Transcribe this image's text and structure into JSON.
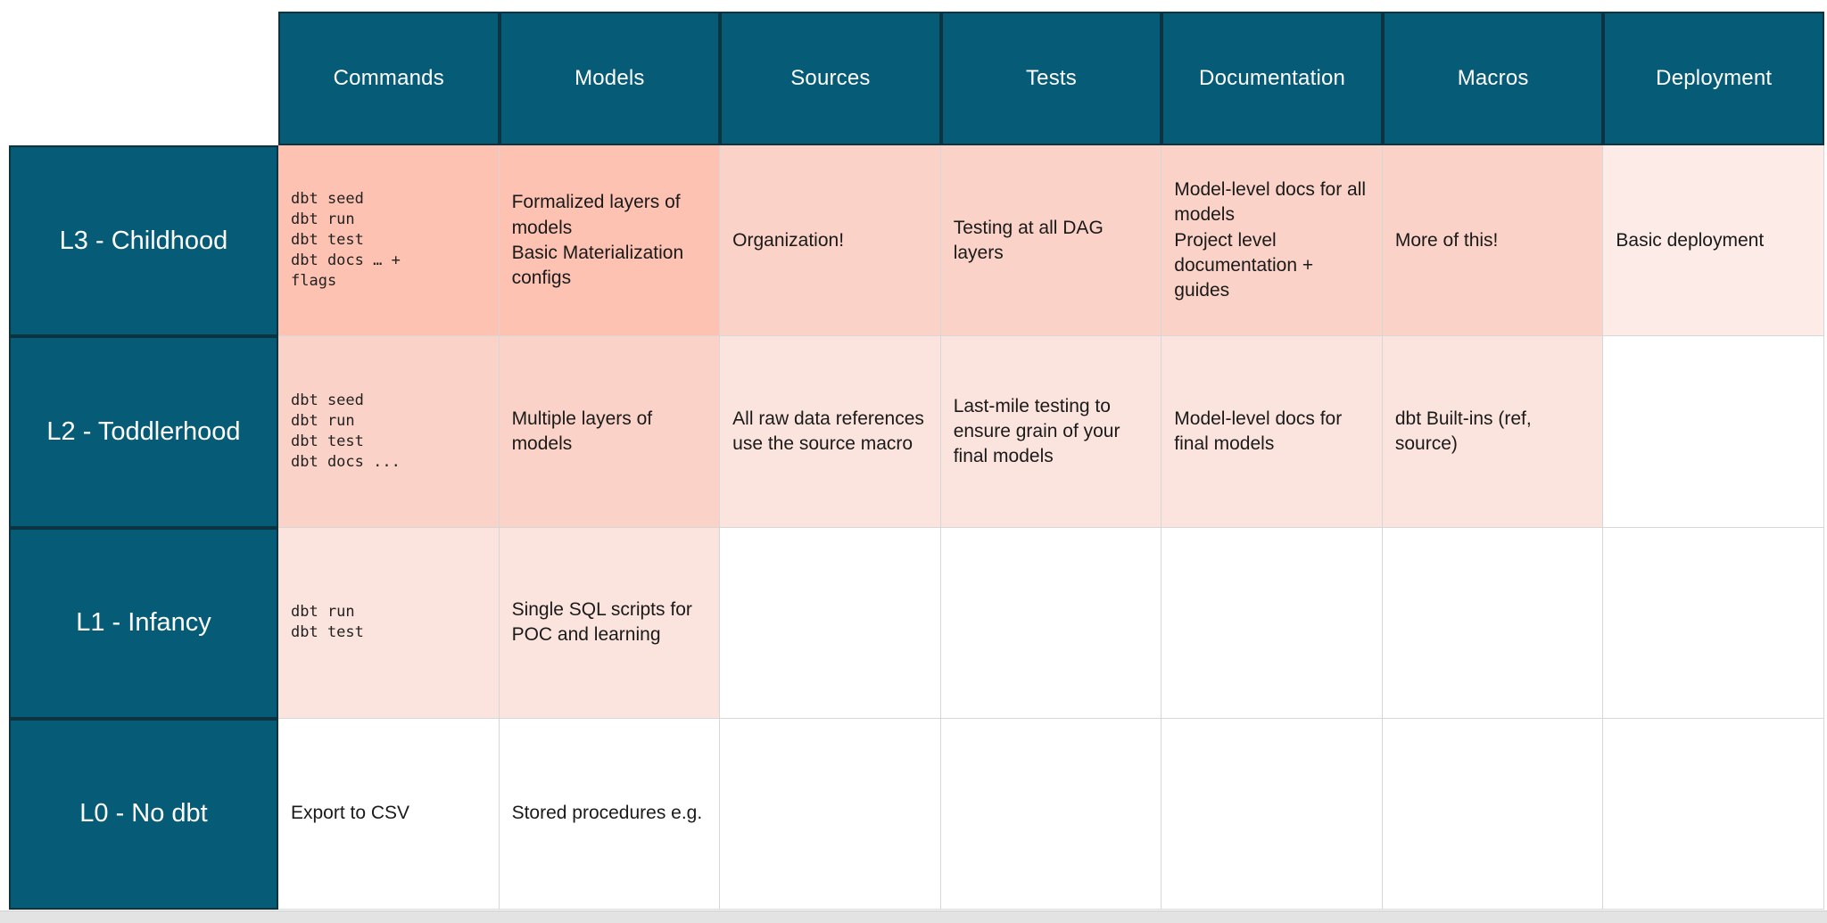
{
  "colors": {
    "teal": "#065B77",
    "teal_border": "#0D3341",
    "grid_line": "#D7D7D7",
    "text_dark": "#1A1A1A",
    "shade_strong": "#FDC2B2",
    "shade_medium": "#FBD2C7",
    "shade_light": "#FCE4DE",
    "shade_faint": "#FCEBE7",
    "shade_white": "#FFFFFF",
    "bottom_bar": "#E3E3E3"
  },
  "table": {
    "columns": [
      "Commands",
      "Models",
      "Sources",
      "Tests",
      "Documentation",
      "Macros",
      "Deployment"
    ],
    "rows": [
      {
        "label": "L3 - Childhood",
        "cells": [
          {
            "text": "dbt seed\ndbt run\ndbt test\ndbt docs … +\nflags",
            "code": true,
            "shade": "strong"
          },
          {
            "text": "Formalized layers of models\nBasic Materialization configs",
            "code": false,
            "shade": "strong"
          },
          {
            "text": "Organization!",
            "code": false,
            "shade": "medium"
          },
          {
            "text": "Testing at all DAG layers",
            "code": false,
            "shade": "medium"
          },
          {
            "text": "Model-level docs for all models\nProject level documentation + guides",
            "code": false,
            "shade": "medium"
          },
          {
            "text": "More of this!",
            "code": false,
            "shade": "medium"
          },
          {
            "text": "Basic deployment",
            "code": false,
            "shade": "faint"
          }
        ]
      },
      {
        "label": "L2 - Toddlerhood",
        "cells": [
          {
            "text": "dbt seed\ndbt run\ndbt test\ndbt docs ...",
            "code": true,
            "shade": "medium"
          },
          {
            "text": "Multiple layers of models",
            "code": false,
            "shade": "medium"
          },
          {
            "text": "All raw data references use the source macro",
            "code": false,
            "shade": "light"
          },
          {
            "text": "Last-mile testing to ensure grain of your final models",
            "code": false,
            "shade": "light"
          },
          {
            "text": "Model-level docs for final models",
            "code": false,
            "shade": "light"
          },
          {
            "text": "dbt Built-ins (ref, source)",
            "code": false,
            "shade": "light"
          },
          {
            "text": "",
            "code": false,
            "shade": "white"
          }
        ]
      },
      {
        "label": "L1 - Infancy",
        "cells": [
          {
            "text": "dbt run\ndbt test",
            "code": true,
            "shade": "light"
          },
          {
            "text": "Single SQL scripts for POC and learning",
            "code": false,
            "shade": "light"
          },
          {
            "text": "",
            "code": false,
            "shade": "white"
          },
          {
            "text": "",
            "code": false,
            "shade": "white"
          },
          {
            "text": "",
            "code": false,
            "shade": "white"
          },
          {
            "text": "",
            "code": false,
            "shade": "white"
          },
          {
            "text": "",
            "code": false,
            "shade": "white"
          }
        ]
      },
      {
        "label": "L0 - No dbt",
        "cells": [
          {
            "text": "Export to CSV",
            "code": false,
            "shade": "white"
          },
          {
            "text": "Stored procedures e.g.",
            "code": false,
            "shade": "white"
          },
          {
            "text": "",
            "code": false,
            "shade": "white"
          },
          {
            "text": "",
            "code": false,
            "shade": "white"
          },
          {
            "text": "",
            "code": false,
            "shade": "white"
          },
          {
            "text": "",
            "code": false,
            "shade": "white"
          },
          {
            "text": "",
            "code": false,
            "shade": "white"
          }
        ]
      }
    ]
  }
}
